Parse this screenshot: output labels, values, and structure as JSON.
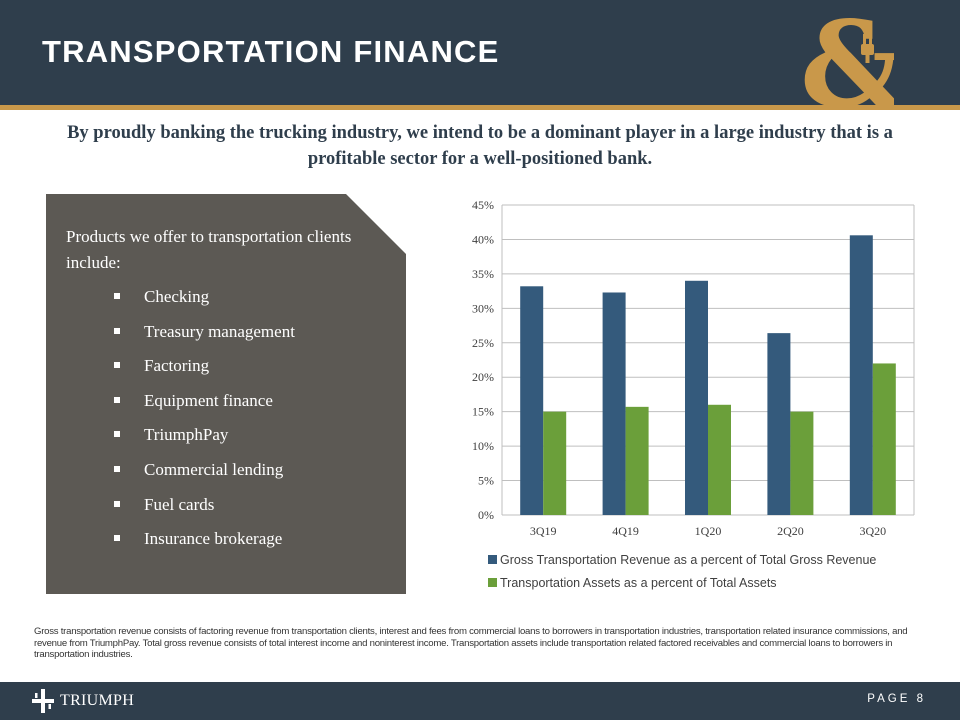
{
  "header": {
    "title": "TRANSPORTATION FINANCE"
  },
  "tagline": "By proudly banking the trucking industry, we intend to be a dominant player in a large industry that is a profitable sector for a well-positioned bank.",
  "products": {
    "intro": "Products we offer to transportation clients include:",
    "items": [
      "Checking",
      "Treasury management",
      "Factoring",
      "Equipment finance",
      "TriumphPay",
      "Commercial lending",
      "Fuel cards",
      "Insurance brokerage"
    ]
  },
  "chart_data": {
    "type": "bar",
    "categories": [
      "3Q19",
      "4Q19",
      "1Q20",
      "2Q20",
      "3Q20"
    ],
    "series": [
      {
        "name": "Gross Transportation Revenue as a percent of Total Gross Revenue",
        "color": "#345a7c",
        "values": [
          33.2,
          32.3,
          34.0,
          26.4,
          40.6
        ]
      },
      {
        "name": "Transportation Assets as a percent of Total Assets",
        "color": "#6b9f3a",
        "values": [
          15.0,
          15.7,
          16.0,
          15.0,
          22.0
        ]
      }
    ],
    "yticks": [
      "0%",
      "5%",
      "10%",
      "15%",
      "20%",
      "25%",
      "30%",
      "35%",
      "40%",
      "45%"
    ],
    "ylim": [
      0,
      45
    ],
    "ytick_step": 5,
    "grid": true,
    "legend": "bottom",
    "title": "",
    "xlabel": "",
    "ylabel": ""
  },
  "footnote": "Gross transportation revenue consists of factoring revenue from transportation clients, interest and fees from commercial loans to borrowers in transportation industries, transportation related insurance commissions, and revenue from TriumphPay. Total gross revenue consists of total interest income and noninterest income. Transportation assets include transportation related factored receivables and commercial loans to borrowers in transportation industries.",
  "footer": {
    "brand": "TRIUMPH",
    "page_label": "PAGE",
    "page_number": "8"
  },
  "colors": {
    "navy": "#2f3e4c",
    "gold": "#c9984a",
    "panel": "#5c5954"
  }
}
